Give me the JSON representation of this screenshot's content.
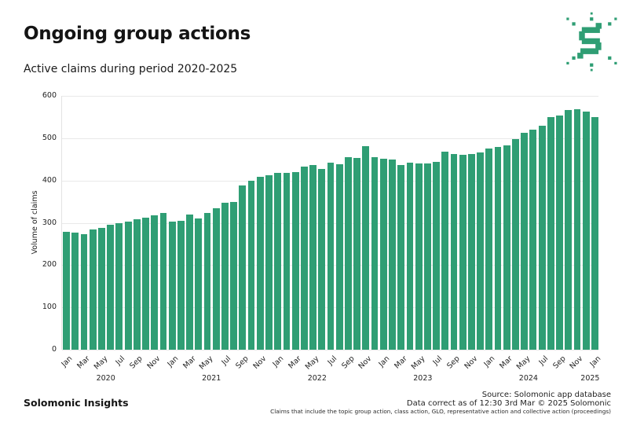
{
  "header": {
    "title": "Ongoing group actions",
    "subtitle": "Active claims during period 2020-2025"
  },
  "logo": {
    "name": "solomonic-logo",
    "color": "#2f9e74"
  },
  "footer": {
    "brand": "Solomonic Insights",
    "source_line": "Source: Solomonic app database",
    "correct_line": "Data correct as of 12:30 3rd Mar © 2025 Solomonic",
    "note_line": "Claims that include the topic group action, class action, GLO, representative action and collective action (proceedings)"
  },
  "chart_data": {
    "type": "bar",
    "title": "Ongoing group actions",
    "subtitle": "Active claims during period 2020-2025",
    "xlabel": "",
    "ylabel": "Volume of claims",
    "ylim": [
      0,
      600
    ],
    "ytick_step": 100,
    "grid": true,
    "legend": false,
    "bar_color": "#2f9e74",
    "gridline_color": "#e9e9e9",
    "months": [
      "Jan 2020",
      "Feb 2020",
      "Mar 2020",
      "Apr 2020",
      "May 2020",
      "Jun 2020",
      "Jul 2020",
      "Aug 2020",
      "Sep 2020",
      "Oct 2020",
      "Nov 2020",
      "Dec 2020",
      "Jan 2021",
      "Feb 2021",
      "Mar 2021",
      "Apr 2021",
      "May 2021",
      "Jun 2021",
      "Jul 2021",
      "Aug 2021",
      "Sep 2021",
      "Oct 2021",
      "Nov 2021",
      "Dec 2021",
      "Jan 2022",
      "Feb 2022",
      "Mar 2022",
      "Apr 2022",
      "May 2022",
      "Jun 2022",
      "Jul 2022",
      "Aug 2022",
      "Sep 2022",
      "Oct 2022",
      "Nov 2022",
      "Dec 2022",
      "Jan 2023",
      "Feb 2023",
      "Mar 2023",
      "Apr 2023",
      "May 2023",
      "Jun 2023",
      "Jul 2023",
      "Aug 2023",
      "Sep 2023",
      "Oct 2023",
      "Nov 2023",
      "Dec 2023",
      "Jan 2024",
      "Feb 2024",
      "Mar 2024",
      "Apr 2024",
      "May 2024",
      "Jun 2024",
      "Jul 2024",
      "Aug 2024",
      "Sep 2024",
      "Oct 2024",
      "Nov 2024",
      "Dec 2024",
      "Jan 2025"
    ],
    "values": [
      278,
      276,
      273,
      284,
      288,
      296,
      299,
      303,
      308,
      313,
      317,
      324,
      302,
      305,
      319,
      311,
      324,
      334,
      347,
      350,
      388,
      400,
      408,
      412,
      418,
      418,
      420,
      432,
      437,
      427,
      442,
      438,
      456,
      453,
      481,
      455,
      451,
      449,
      437,
      443,
      440,
      440,
      444,
      468,
      463,
      460,
      462,
      466,
      475,
      480,
      483,
      498,
      512,
      520,
      529,
      550,
      554,
      566,
      569,
      563,
      550
    ],
    "xtick_month_cycle": [
      "Jan",
      "Mar",
      "May",
      "Jul",
      "Sep",
      "Nov"
    ],
    "year_labels": [
      "2020",
      "2021",
      "2022",
      "2023",
      "2024",
      "2025"
    ]
  }
}
